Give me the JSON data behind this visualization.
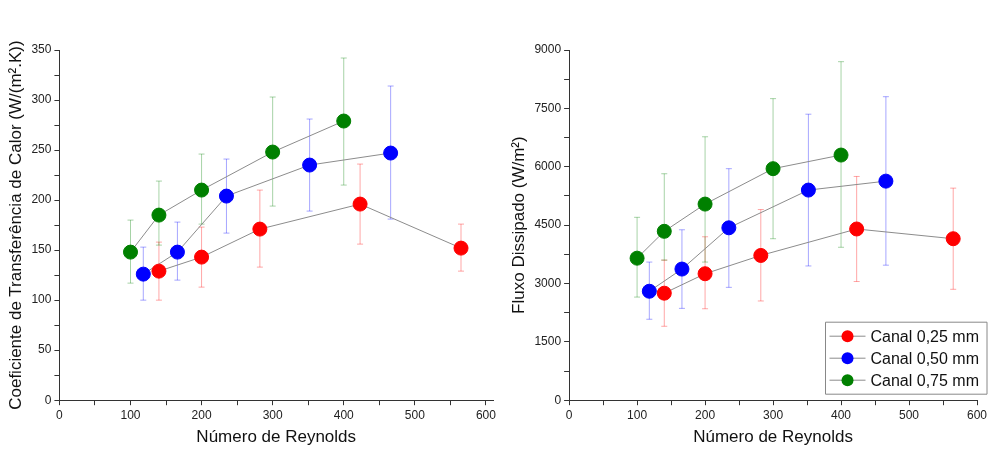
{
  "chart_data": [
    {
      "type": "line",
      "xlabel": "Número de Reynolds",
      "ylabel": "Coeficiente de Transferência de Calor (W/(m².K))",
      "xlim": [
        0,
        610
      ],
      "ylim": [
        0,
        350
      ],
      "xticks": [
        0,
        {
          "value": 50,
          "label": null
        },
        100,
        {
          "value": 150,
          "label": null
        },
        200,
        {
          "value": 250,
          "label": null
        },
        300,
        {
          "value": 350,
          "label": null
        },
        400,
        {
          "value": 450,
          "label": null
        },
        500,
        {
          "value": 550,
          "label": null
        },
        600
      ],
      "yticks": [
        0,
        {
          "value": 25,
          "label": null
        },
        50,
        {
          "value": 75,
          "label": null
        },
        100,
        {
          "value": 125,
          "label": null
        },
        150,
        {
          "value": 175,
          "label": null
        },
        200,
        {
          "value": 225,
          "label": null
        },
        250,
        {
          "value": 275,
          "label": null
        },
        300,
        {
          "value": 325,
          "label": null
        },
        350
      ],
      "marker": "circle",
      "grid": false,
      "legend": false,
      "series": [
        {
          "color": "#ff0000",
          "x": [
            140,
            200,
            282,
            423,
            565
          ],
          "values": [
            129,
            143,
            171,
            196,
            152
          ],
          "errors": [
            [
              100,
              158
            ],
            [
              113,
              173
            ],
            [
              133,
              210
            ],
            [
              156,
              236
            ],
            [
              129,
              176
            ]
          ]
        },
        {
          "color": "#0000ff",
          "x": [
            118,
            166,
            235,
            352,
            466
          ],
          "values": [
            126,
            148,
            204,
            235,
            247
          ],
          "errors": [
            [
              100,
              153
            ],
            [
              120,
              178
            ],
            [
              167,
              241
            ],
            [
              189,
              281
            ],
            [
              181,
              314
            ]
          ]
        },
        {
          "color": "#008000",
          "x": [
            100,
            140,
            200,
            300,
            400
          ],
          "values": [
            148,
            185,
            210,
            248,
            279
          ],
          "errors": [
            [
              117,
              180
            ],
            [
              155,
              219
            ],
            [
              176,
              246
            ],
            [
              194,
              303
            ],
            [
              215,
              342
            ]
          ]
        }
      ]
    },
    {
      "type": "line",
      "xlabel": "Número de Reynolds",
      "ylabel": "Fluxo Dissipado (W/m²)",
      "xlim": [
        0,
        600
      ],
      "ylim": [
        0,
        9000
      ],
      "xticks": [
        0,
        {
          "value": 50,
          "label": null
        },
        100,
        {
          "value": 150,
          "label": null
        },
        200,
        {
          "value": 250,
          "label": null
        },
        300,
        {
          "value": 350,
          "label": null
        },
        400,
        {
          "value": 450,
          "label": null
        },
        500,
        {
          "value": 550,
          "label": null
        },
        600
      ],
      "yticks": [
        0,
        {
          "value": 750,
          "label": null
        },
        1500,
        {
          "value": 2250,
          "label": null
        },
        3000,
        {
          "value": 3750,
          "label": null
        },
        4500,
        {
          "value": 5250,
          "label": null
        },
        6000,
        {
          "value": 6750,
          "label": null
        },
        7500,
        {
          "value": 8250,
          "label": null
        },
        9000
      ],
      "marker": "circle",
      "grid": false,
      "legend": "bottom right",
      "series": [
        {
          "name": "Canal 0,25 mm",
          "color": "#ff0000",
          "x": [
            140,
            200,
            282,
            423,
            565
          ],
          "values": [
            2750,
            3250,
            3720,
            4400,
            4150
          ],
          "errors": [
            [
              1900,
              3600
            ],
            [
              2350,
              4200
            ],
            [
              2550,
              4900
            ],
            [
              3050,
              5750
            ],
            [
              2850,
              5450
            ]
          ]
        },
        {
          "name": "Canal 0,50 mm",
          "color": "#0000ff",
          "x": [
            118,
            166,
            235,
            352,
            466
          ],
          "values": [
            2800,
            3370,
            4430,
            5400,
            5630
          ],
          "errors": [
            [
              2080,
              3550
            ],
            [
              2360,
              4380
            ],
            [
              2900,
              5950
            ],
            [
              3450,
              7350
            ],
            [
              3470,
              7800
            ]
          ]
        },
        {
          "name": "Canal 0,75 mm",
          "color": "#008000",
          "x": [
            100,
            140,
            200,
            300,
            400
          ],
          "values": [
            3650,
            4340,
            5040,
            5950,
            6300
          ],
          "errors": [
            [
              2650,
              4700
            ],
            [
              3600,
              5820
            ],
            [
              3550,
              6770
            ],
            [
              4150,
              7750
            ],
            [
              3930,
              8700
            ]
          ]
        }
      ]
    }
  ]
}
